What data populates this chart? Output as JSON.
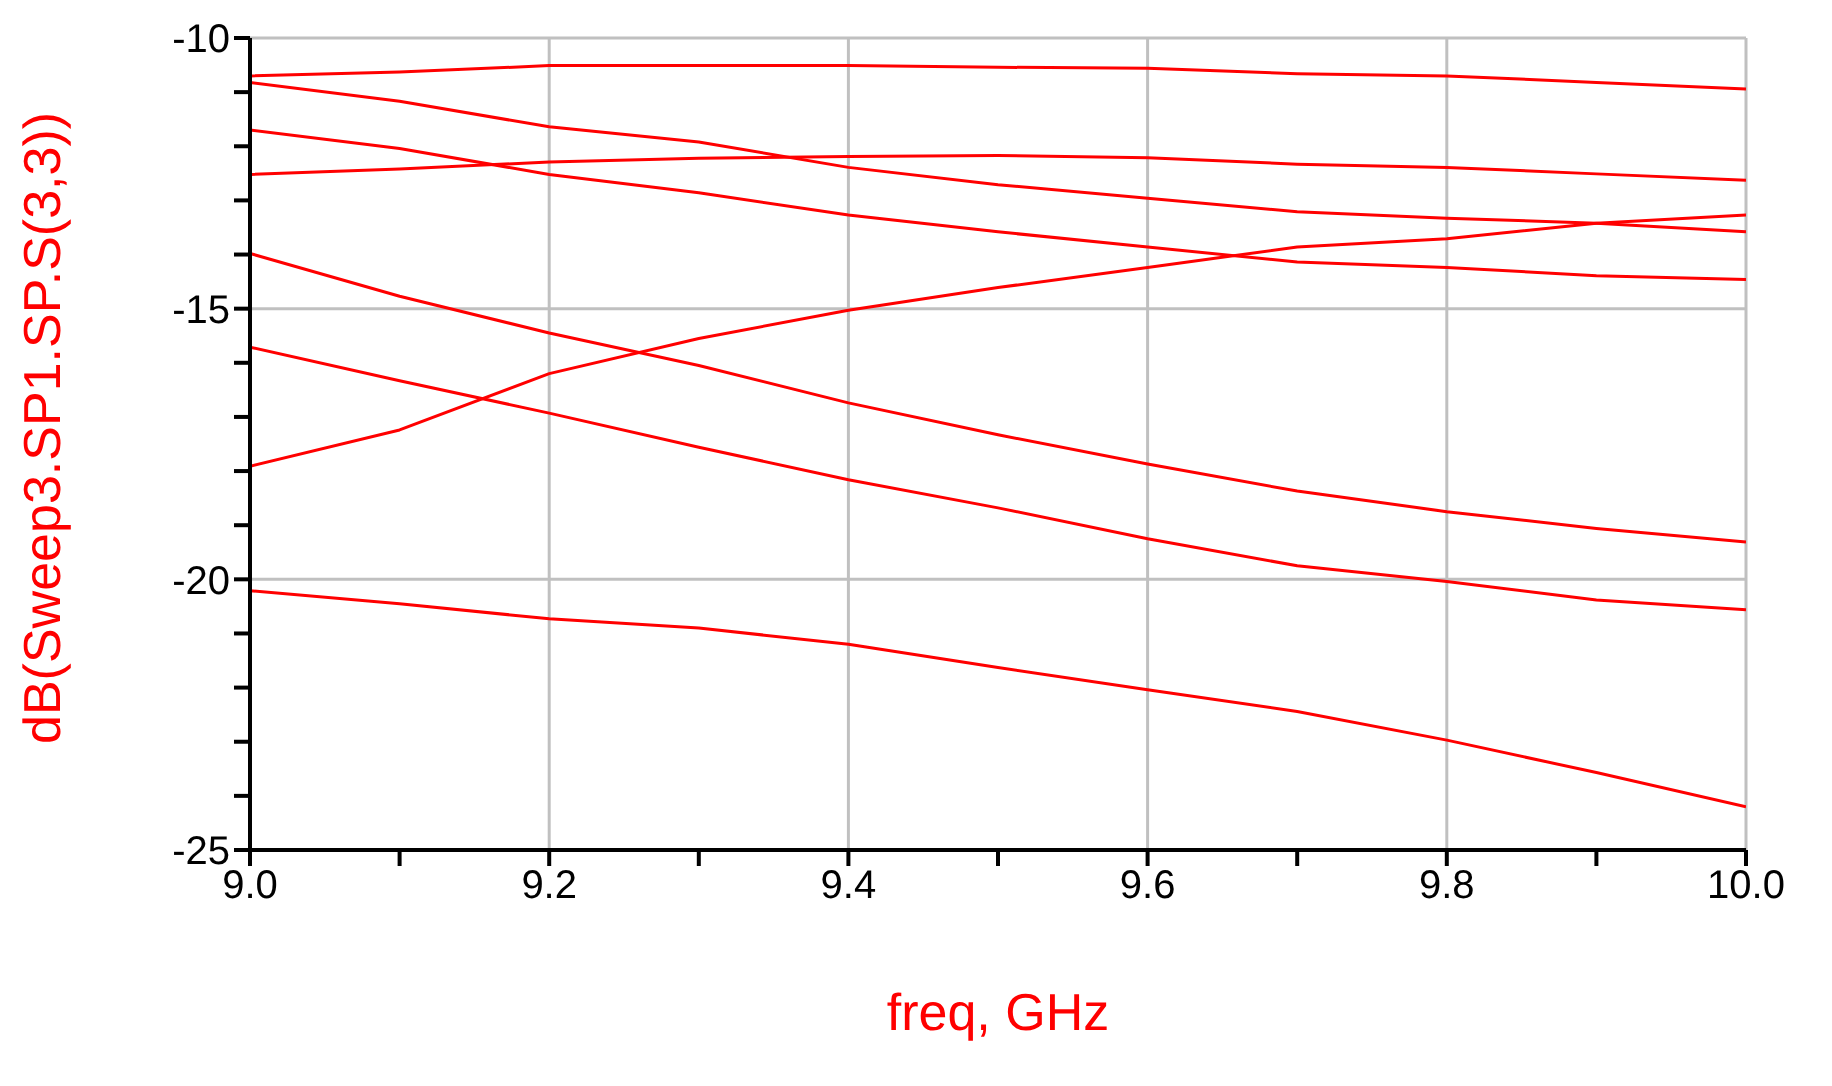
{
  "chart_data": {
    "type": "line",
    "xlabel": "freq, GHz",
    "ylabel": "dB(Sweep3.SP1.SP.S(3,3))",
    "x": [
      9.0,
      9.1,
      9.2,
      9.3,
      9.4,
      9.5,
      9.6,
      9.7,
      9.8,
      9.9,
      10.0
    ],
    "xlim": [
      9.0,
      10.0
    ],
    "xticks": [
      {
        "value": 9.0,
        "label": "9.0"
      },
      {
        "value": 9.1,
        "label": null
      },
      {
        "value": 9.2,
        "label": "9.2"
      },
      {
        "value": 9.3,
        "label": null
      },
      {
        "value": 9.4,
        "label": "9.4"
      },
      {
        "value": 9.5,
        "label": null
      },
      {
        "value": 9.6,
        "label": "9.6"
      },
      {
        "value": 9.7,
        "label": null
      },
      {
        "value": 9.8,
        "label": "9.8"
      },
      {
        "value": 9.9,
        "label": null
      },
      {
        "value": 10.0,
        "label": "10.0"
      }
    ],
    "ylim": [
      -25,
      -10
    ],
    "yticks": [
      -25,
      {
        "value": -24,
        "label": null
      },
      {
        "value": -23,
        "label": null
      },
      {
        "value": -22,
        "label": null
      },
      {
        "value": -21,
        "label": null
      },
      -20,
      {
        "value": -19,
        "label": null
      },
      {
        "value": -18,
        "label": null
      },
      {
        "value": -17,
        "label": null
      },
      {
        "value": -16,
        "label": null
      },
      -15,
      {
        "value": -14,
        "label": null
      },
      {
        "value": -13,
        "label": null
      },
      {
        "value": -12,
        "label": null
      },
      {
        "value": -11,
        "label": null
      },
      -10
    ],
    "grid": true,
    "marker": "none",
    "line_style": "solid",
    "series": [
      {
        "color": "#ff0000",
        "values": [
          -10.7,
          -10.63,
          -10.51,
          -10.51,
          -10.51,
          -10.54,
          -10.56,
          -10.66,
          -10.7,
          -10.82,
          -10.94
        ]
      },
      {
        "color": "#ff0000",
        "values": [
          -10.82,
          -11.17,
          -11.64,
          -11.92,
          -12.39,
          -12.71,
          -12.96,
          -13.21,
          -13.33,
          -13.42,
          -13.58
        ]
      },
      {
        "color": "#ff0000",
        "values": [
          -11.7,
          -12.04,
          -12.52,
          -12.86,
          -13.27,
          -13.58,
          -13.86,
          -14.14,
          -14.24,
          -14.39,
          -14.46
        ]
      },
      {
        "color": "#ff0000",
        "values": [
          -12.52,
          -12.42,
          -12.29,
          -12.22,
          -12.19,
          -12.17,
          -12.21,
          -12.33,
          -12.39,
          -12.51,
          -12.63
        ]
      },
      {
        "color": "#ff0000",
        "values": [
          -17.91,
          -17.24,
          -16.2,
          -15.55,
          -15.03,
          -14.61,
          -14.24,
          -13.86,
          -13.71,
          -13.42,
          -13.27
        ]
      },
      {
        "color": "#ff0000",
        "values": [
          -13.98,
          -14.77,
          -15.45,
          -16.05,
          -16.74,
          -17.33,
          -17.87,
          -18.37,
          -18.75,
          -19.06,
          -19.31
        ]
      },
      {
        "color": "#ff0000",
        "values": [
          -15.71,
          -16.33,
          -16.93,
          -17.56,
          -18.16,
          -18.68,
          -19.25,
          -19.75,
          -20.04,
          -20.38,
          -20.56
        ]
      },
      {
        "color": "#ff0000",
        "values": [
          -20.21,
          -20.45,
          -20.73,
          -20.9,
          -21.2,
          -21.63,
          -22.04,
          -22.44,
          -22.97,
          -23.57,
          -24.2
        ]
      }
    ]
  }
}
